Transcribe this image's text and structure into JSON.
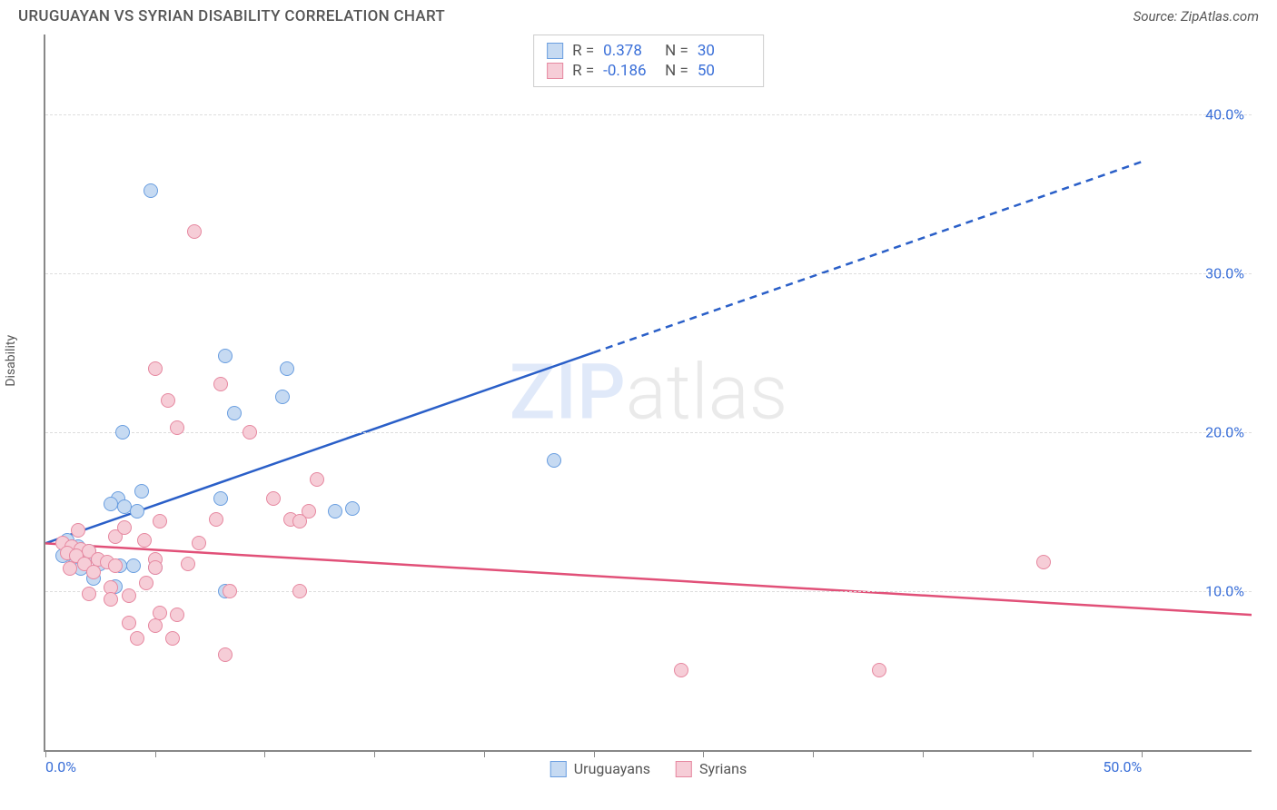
{
  "title": "URUGUAYAN VS SYRIAN DISABILITY CORRELATION CHART",
  "source": "Source: ZipAtlas.com",
  "ylabel": "Disability",
  "watermark": {
    "part1": "ZIP",
    "part2": "atlas"
  },
  "chart": {
    "type": "scatter",
    "xlim": [
      0,
      55
    ],
    "ylim": [
      0,
      45
    ],
    "background_color": "#ffffff",
    "grid_color": "#dddddd",
    "axis_label_color": "#3a6fd8",
    "y_gridlines": [
      10,
      20,
      30,
      40
    ],
    "y_tick_labels": [
      "10.0%",
      "20.0%",
      "30.0%",
      "40.0%"
    ],
    "x_ticks": [
      0,
      5,
      10,
      15,
      20,
      25,
      30,
      35,
      40,
      45,
      50
    ],
    "x_tick_labels": {
      "0": "0.0%",
      "50": "50.0%"
    },
    "marker_radius": 8,
    "series": [
      {
        "name": "Uruguayans",
        "fill": "#c6daf2",
        "stroke": "#6a9ee0",
        "line_color": "#2a5fc8",
        "line_width": 2.5,
        "r_value": "0.378",
        "n_value": "30",
        "trend": {
          "x1": 0,
          "y1": 13,
          "x2": 25,
          "y2": 25,
          "x_solid_end": 25,
          "x_dash_end": 50,
          "y_dash_end": 37
        },
        "points": [
          [
            4.8,
            35.2
          ],
          [
            8.2,
            24.8
          ],
          [
            11.0,
            24.0
          ],
          [
            8.6,
            21.2
          ],
          [
            10.8,
            22.2
          ],
          [
            3.5,
            20.0
          ],
          [
            14.0,
            15.2
          ],
          [
            13.2,
            15.0
          ],
          [
            3.3,
            15.8
          ],
          [
            3.6,
            15.3
          ],
          [
            3.0,
            15.5
          ],
          [
            4.2,
            15.0
          ],
          [
            1.0,
            13.2
          ],
          [
            1.5,
            12.8
          ],
          [
            2.0,
            12.5
          ],
          [
            1.2,
            12.4
          ],
          [
            0.8,
            12.2
          ],
          [
            1.8,
            12.0
          ],
          [
            2.5,
            11.7
          ],
          [
            1.3,
            11.6
          ],
          [
            1.6,
            11.4
          ],
          [
            3.4,
            11.6
          ],
          [
            5.0,
            11.5
          ],
          [
            4.0,
            11.6
          ],
          [
            2.2,
            10.8
          ],
          [
            3.2,
            10.3
          ],
          [
            8.2,
            10.0
          ],
          [
            23.2,
            18.2
          ],
          [
            8.0,
            15.8
          ],
          [
            4.4,
            16.3
          ]
        ]
      },
      {
        "name": "Syrians",
        "fill": "#f6cdd7",
        "stroke": "#e688a0",
        "line_color": "#e15078",
        "line_width": 2.5,
        "r_value": "-0.186",
        "n_value": "50",
        "trend": {
          "x1": 0,
          "y1": 13,
          "x2": 55,
          "y2": 8.5,
          "x_solid_end": 55
        },
        "points": [
          [
            6.8,
            32.6
          ],
          [
            5.0,
            24.0
          ],
          [
            8.0,
            23.0
          ],
          [
            5.6,
            22.0
          ],
          [
            6.0,
            20.3
          ],
          [
            9.3,
            20.0
          ],
          [
            12.4,
            17.0
          ],
          [
            10.4,
            15.8
          ],
          [
            12.0,
            15.0
          ],
          [
            11.2,
            14.5
          ],
          [
            11.6,
            14.4
          ],
          [
            7.8,
            14.5
          ],
          [
            5.2,
            14.4
          ],
          [
            0.8,
            13.0
          ],
          [
            1.2,
            12.8
          ],
          [
            1.6,
            12.6
          ],
          [
            2.0,
            12.5
          ],
          [
            1.0,
            12.4
          ],
          [
            1.4,
            12.2
          ],
          [
            2.4,
            12.0
          ],
          [
            2.8,
            11.8
          ],
          [
            1.8,
            11.7
          ],
          [
            3.2,
            11.6
          ],
          [
            1.1,
            11.4
          ],
          [
            2.2,
            11.2
          ],
          [
            5.0,
            12.0
          ],
          [
            3.2,
            13.4
          ],
          [
            3.6,
            14.0
          ],
          [
            4.5,
            13.2
          ],
          [
            5.0,
            11.5
          ],
          [
            6.5,
            11.7
          ],
          [
            4.6,
            10.5
          ],
          [
            3.0,
            10.2
          ],
          [
            8.4,
            10.0
          ],
          [
            11.6,
            10.0
          ],
          [
            6.0,
            8.5
          ],
          [
            3.8,
            8.0
          ],
          [
            5.0,
            7.8
          ],
          [
            4.2,
            7.0
          ],
          [
            5.8,
            7.0
          ],
          [
            8.2,
            6.0
          ],
          [
            29.0,
            5.0
          ],
          [
            38.0,
            5.0
          ],
          [
            45.5,
            11.8
          ],
          [
            2.0,
            9.8
          ],
          [
            3.0,
            9.5
          ],
          [
            3.8,
            9.7
          ],
          [
            5.2,
            8.6
          ],
          [
            1.5,
            13.8
          ],
          [
            7.0,
            13.0
          ]
        ]
      }
    ],
    "legend_bottom": [
      "Uruguayans",
      "Syrians"
    ]
  }
}
